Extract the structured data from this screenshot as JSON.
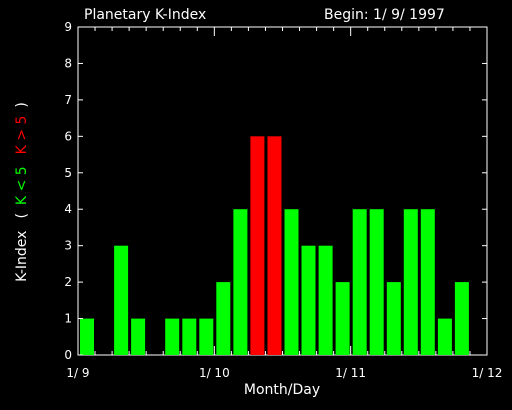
{
  "colors": {
    "background": "#000000",
    "normal": "#00ff00",
    "storm": "#ff0000",
    "axis": "#ffffff"
  },
  "chart_data": {
    "type": "bar",
    "title": "Planetary K-Index",
    "begin_label": "Begin: 1/ 9/ 1997",
    "xlabel": "Month/Day",
    "ylabel_parts": [
      {
        "text": "K-Index",
        "color": "#ffffff"
      },
      {
        "text": "(",
        "color": "#ffffff"
      },
      {
        "text": "K < 5",
        "color": "#00ff00"
      },
      {
        "text": "K > 5",
        "color": "#ff0000"
      },
      {
        "text": ")",
        "color": "#ffffff"
      }
    ],
    "ylim": [
      0,
      9
    ],
    "yticks": [
      "0",
      "1",
      "2",
      "3",
      "4",
      "5",
      "6",
      "7",
      "8",
      "9"
    ],
    "xlim": [
      0,
      24
    ],
    "xticks": [
      {
        "label": "1/ 9",
        "pos": 0
      },
      {
        "label": "1/ 10",
        "pos": 8
      },
      {
        "label": "1/ 11",
        "pos": 16
      },
      {
        "label": "1/ 12",
        "pos": 24
      }
    ],
    "bars_per_day": 8,
    "values": [
      1,
      0,
      3,
      1,
      0,
      1,
      1,
      1,
      2,
      4,
      6,
      6,
      4,
      3,
      3,
      2,
      4,
      4,
      2,
      4,
      4,
      1,
      2,
      0
    ],
    "threshold": 5
  }
}
